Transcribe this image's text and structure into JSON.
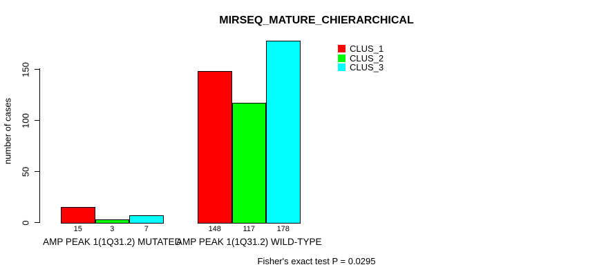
{
  "chart": {
    "title": "MIRSEQ_MATURE_CHIERARCHICAL",
    "y_axis_label": "number of cases",
    "footer": "Fisher's exact test P = 0.0295"
  },
  "chart_data": {
    "type": "bar",
    "title": "MIRSEQ_MATURE_CHIERARCHICAL",
    "xlabel": "",
    "ylabel": "number of cases",
    "categories": [
      "AMP PEAK 1(1Q31.2) MUTATED",
      "AMP PEAK 1(1Q31.2) WILD-TYPE"
    ],
    "series": [
      {
        "name": "CLUS_1",
        "color": "#FF0000",
        "values": [
          15,
          148
        ]
      },
      {
        "name": "CLUS_2",
        "color": "#00FF00",
        "values": [
          3,
          117
        ]
      },
      {
        "name": "CLUS_3",
        "color": "#00FFFF",
        "values": [
          7,
          178
        ]
      }
    ],
    "yticks": [
      0,
      50,
      100,
      150
    ],
    "ylim": [
      0,
      178
    ],
    "grid": false,
    "bar_value_labels_shown": true,
    "legend_position": "top-right",
    "annotation": "Fisher's exact test P = 0.0295"
  }
}
